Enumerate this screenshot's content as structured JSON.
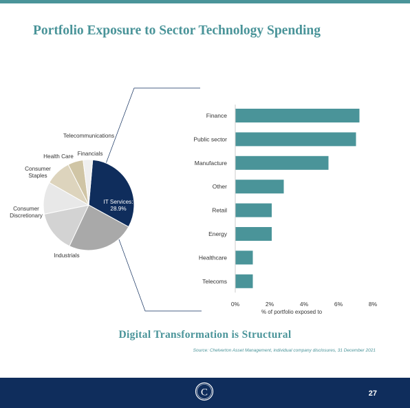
{
  "slide": {
    "title": "Portfolio Exposure to Sector Technology Spending",
    "subtitle": "Digital Transformation is Structural",
    "source": "Source: Chelverton Asset Management, individual company disclosures, 31 December 2021",
    "page_number": "27",
    "logo_letter": "C"
  },
  "colors": {
    "accent": "#4a9499",
    "navy": "#0f2d5c",
    "bar": "#4a9499"
  },
  "chart_data": [
    {
      "type": "pie",
      "title": "",
      "slices": [
        {
          "label": "IT Services",
          "value": 28.9,
          "color": "#0f2d5c",
          "display": "IT Services: 28.9%"
        },
        {
          "label": "Industrials",
          "value": 22.0,
          "color": "#a9a9a9",
          "display": "Industrials"
        },
        {
          "label": "Consumer Discretionary",
          "value": 13.5,
          "color": "#d3d3d3",
          "display": "Consumer Discretionary"
        },
        {
          "label": "Consumer Staples",
          "value": 10.5,
          "color": "#e8e8e8",
          "display": "Consumer Staples"
        },
        {
          "label": "Health Care",
          "value": 8.5,
          "color": "#ddd4bd",
          "display": "Health Care"
        },
        {
          "label": "Financials",
          "value": 5.0,
          "color": "#d0c5a5",
          "display": "Financials"
        },
        {
          "label": "Telecommunications",
          "value": 3.1,
          "color": "#efefef",
          "display": "Telecommunications"
        }
      ]
    },
    {
      "type": "bar",
      "orientation": "horizontal",
      "categories": [
        "Finance",
        "Public sector",
        "Manufacture",
        "Other",
        "Retail",
        "Energy",
        "Healthcare",
        "Telecoms"
      ],
      "values": [
        7.2,
        7.0,
        5.4,
        2.8,
        2.1,
        2.1,
        1.0,
        1.0
      ],
      "xlabel": "% of portfolio exposed to",
      "ylabel": "",
      "xlim": [
        0,
        8
      ],
      "xticks": [
        "0%",
        "2%",
        "4%",
        "6%",
        "8%"
      ],
      "grid": false
    }
  ]
}
